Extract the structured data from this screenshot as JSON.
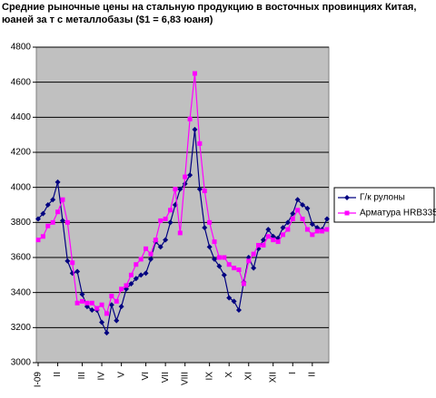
{
  "chart_data": {
    "type": "line",
    "title": [
      "Средние рыночные цены на стальную продукцию в восточных провинциях Китая,",
      "юаней за  т  с металлобазы ($1 = 6,83 юаня)"
    ],
    "categories": [
      "I-09",
      null,
      null,
      null,
      "II",
      null,
      null,
      null,
      null,
      "III",
      null,
      null,
      null,
      "IV",
      null,
      null,
      null,
      "V",
      null,
      null,
      null,
      null,
      "VI",
      null,
      null,
      null,
      "VII",
      null,
      null,
      null,
      "VIII",
      null,
      null,
      null,
      null,
      "IX",
      null,
      null,
      null,
      "X",
      null,
      null,
      null,
      "XI",
      null,
      null,
      null,
      null,
      "XII",
      null,
      null,
      null,
      "I",
      null,
      null,
      null,
      "II",
      null,
      null,
      null
    ],
    "series": [
      {
        "name": "Г/к рулоны",
        "color": "#000080",
        "marker": "diamond",
        "values": [
          3820,
          3850,
          3900,
          3930,
          4030,
          3810,
          3580,
          3510,
          3520,
          3390,
          3320,
          3300,
          3300,
          3230,
          3170,
          3330,
          3240,
          3320,
          3420,
          3450,
          3480,
          3500,
          3510,
          3590,
          3690,
          3660,
          3700,
          3800,
          3900,
          3990,
          4020,
          4070,
          4330,
          3990,
          3770,
          3660,
          3590,
          3550,
          3500,
          3370,
          3350,
          3300,
          3460,
          3600,
          3540,
          3650,
          3700,
          3760,
          3720,
          3710,
          3770,
          3800,
          3850,
          3930,
          3900,
          3880,
          3790,
          3770,
          3760,
          3820
        ]
      },
      {
        "name": "Арматура HRB335",
        "color": "#ff00ff",
        "marker": "square",
        "values": [
          3700,
          3720,
          3780,
          3800,
          3860,
          3930,
          3800,
          3570,
          3340,
          3350,
          3340,
          3340,
          3310,
          3330,
          3280,
          3380,
          3350,
          3420,
          3440,
          3500,
          3560,
          3590,
          3650,
          3620,
          3700,
          3810,
          3820,
          3870,
          3990,
          3740,
          4060,
          4390,
          4650,
          4250,
          3980,
          3800,
          3690,
          3600,
          3600,
          3560,
          3540,
          3530,
          3450,
          3580,
          3620,
          3670,
          3670,
          3720,
          3700,
          3690,
          3730,
          3760,
          3820,
          3870,
          3820,
          3760,
          3730,
          3750,
          3750,
          3760
        ]
      }
    ],
    "ylim": [
      3000,
      4800
    ],
    "yticks": [
      3000,
      3200,
      3400,
      3600,
      3800,
      4000,
      4200,
      4400,
      4600,
      4800
    ],
    "grid": true,
    "legend": "right"
  }
}
